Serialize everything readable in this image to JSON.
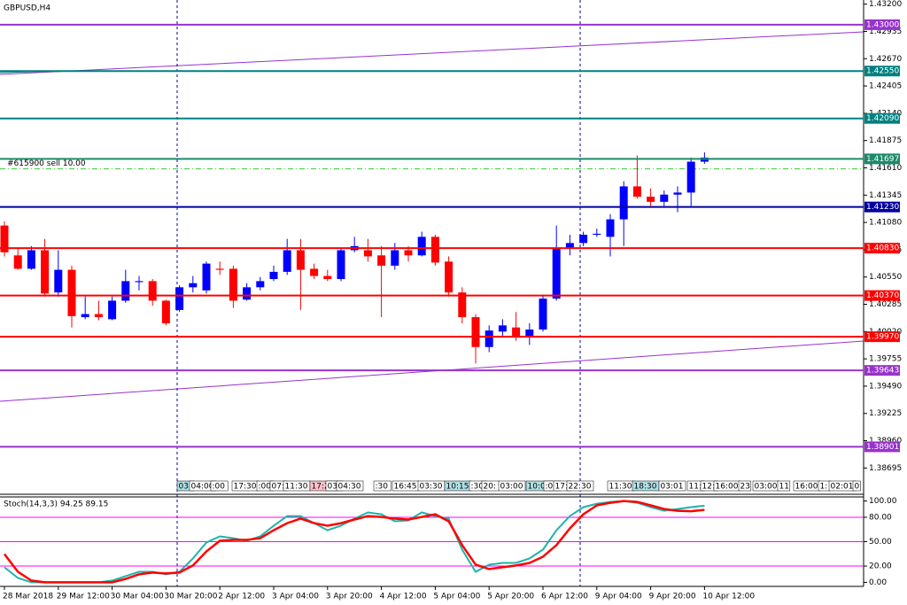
{
  "chart_data": [
    {
      "type": "candlestick",
      "title": "GBPUSD,H4",
      "annotation": {
        "text": "#615900 sell 10.00",
        "value": 1.416,
        "color": "#32cd32"
      },
      "up_color": "#0000ff",
      "down_color": "#ff0000",
      "categories": [
        "28 Mar 2018",
        null,
        null,
        null,
        "29 Mar 12:00",
        null,
        null,
        null,
        "30 Mar 04:00",
        null,
        null,
        null,
        "30 Mar 20:00",
        null,
        null,
        null,
        "2 Apr 12:00",
        null,
        null,
        null,
        "3 Apr 04:00",
        null,
        null,
        null,
        "3 Apr 20:00",
        null,
        null,
        null,
        "4 Apr 12:00",
        null,
        null,
        null,
        "5 Apr 04:00",
        null,
        null,
        null,
        "5 Apr 20:00",
        null,
        null,
        null,
        "6 Apr 12:00",
        null,
        null,
        null,
        "9 Apr 04:00",
        null,
        null,
        null,
        "9 Apr 20:00",
        null,
        null,
        null,
        "10 Apr 12:00"
      ],
      "open": [
        1.4105,
        1.4076,
        1.4063,
        1.4081,
        1.404,
        1.4062,
        1.4016,
        1.4019,
        1.4014,
        1.4032,
        1.405,
        1.4051,
        1.4032,
        1.4023,
        1.4045,
        1.4042,
        1.4063,
        1.4063,
        1.4033,
        1.4045,
        1.4053,
        1.406,
        1.4081,
        1.4063,
        1.4056,
        1.4053,
        1.4081,
        1.4081,
        1.4076,
        1.4066,
        1.4081,
        1.4076,
        1.4094,
        1.407,
        1.404,
        1.4016,
        1.3987,
        1.4002,
        1.4006,
        1.3997,
        1.4004,
        1.4034,
        1.4083,
        1.4088,
        1.4096,
        1.4094,
        1.4111,
        1.4143,
        1.4133,
        1.4128,
        1.4135,
        1.4137,
        1.4167
      ],
      "high": [
        1.4109,
        1.4083,
        1.4085,
        1.4092,
        1.4081,
        1.4066,
        1.4036,
        1.4032,
        1.4036,
        1.4062,
        1.4056,
        1.4053,
        1.4033,
        1.4047,
        1.4056,
        1.407,
        1.407,
        1.4066,
        1.4049,
        1.4055,
        1.4066,
        1.4092,
        1.4092,
        1.4068,
        1.4062,
        1.4083,
        1.4094,
        1.4092,
        1.4085,
        1.4088,
        1.4085,
        1.4099,
        1.4096,
        1.4075,
        1.4045,
        1.4019,
        1.4008,
        1.4014,
        1.4021,
        1.401,
        1.4038,
        1.4105,
        1.4096,
        1.4099,
        1.4102,
        1.4116,
        1.4148,
        1.4173,
        1.4141,
        1.4139,
        1.4143,
        1.4171,
        1.4176
      ],
      "low": [
        1.4075,
        1.4062,
        1.4062,
        1.4036,
        1.4036,
        1.4006,
        1.4014,
        1.4013,
        1.4013,
        1.403,
        1.4042,
        1.4027,
        1.4008,
        1.4021,
        1.404,
        1.4039,
        1.4057,
        1.4025,
        1.4032,
        1.4042,
        1.4051,
        1.4057,
        1.4023,
        1.4053,
        1.4051,
        1.4051,
        1.4079,
        1.407,
        1.4016,
        1.4062,
        1.407,
        1.4075,
        1.4066,
        1.4036,
        1.401,
        1.3971,
        1.3982,
        1.3997,
        1.3993,
        1.3989,
        1.4002,
        1.4032,
        1.4076,
        1.4085,
        1.4094,
        1.4075,
        1.4085,
        1.4131,
        1.4124,
        1.4124,
        1.4118,
        1.4124,
        1.4165
      ],
      "close": [
        1.4079,
        1.4063,
        1.4081,
        1.4039,
        1.4062,
        1.4017,
        1.4019,
        1.4016,
        1.4032,
        1.4051,
        1.4051,
        1.4032,
        1.401,
        1.4045,
        1.4049,
        1.4068,
        1.4062,
        1.4032,
        1.4045,
        1.4051,
        1.406,
        1.4081,
        1.4062,
        1.4056,
        1.4053,
        1.4081,
        1.4085,
        1.4075,
        1.4066,
        1.4081,
        1.4076,
        1.4094,
        1.4069,
        1.404,
        1.4016,
        1.3987,
        1.4003,
        1.4008,
        1.3997,
        1.4004,
        1.4034,
        1.4083,
        1.4088,
        1.4096,
        1.4097,
        1.4111,
        1.4143,
        1.4133,
        1.4128,
        1.4135,
        1.4137,
        1.4167,
        1.4171
      ],
      "ylim": [
        1.3844,
        1.4324
      ],
      "yticks": [
        {
          "value": 1.432,
          "label": "1.43200"
        },
        {
          "value": 1.42935,
          "label": "1.42935"
        },
        {
          "value": 1.4267,
          "label": "1.42670"
        },
        {
          "value": 1.42405,
          "label": "1.42405"
        },
        {
          "value": 1.4214,
          "label": "1.42140"
        },
        {
          "value": 1.41875,
          "label": "1.41875"
        },
        {
          "value": 1.4161,
          "label": "1.41610"
        },
        {
          "value": 1.41345,
          "label": "1.41345"
        },
        {
          "value": 1.4108,
          "label": "1.41080"
        },
        {
          "value": 1.40815,
          "label": "1.40815"
        },
        {
          "value": 1.4055,
          "label": "1.40550"
        },
        {
          "value": 1.40285,
          "label": "1.40285"
        },
        {
          "value": 1.4002,
          "label": "1.40020"
        },
        {
          "value": 1.39755,
          "label": "1.39755"
        },
        {
          "value": 1.3949,
          "label": "1.39490"
        },
        {
          "value": 1.39225,
          "label": "1.39225"
        },
        {
          "value": 1.3896,
          "label": "1.38960"
        },
        {
          "value": 1.38695,
          "label": "1.38695"
        }
      ],
      "levels": [
        {
          "value": 1.43,
          "label": "1.43000",
          "color": "#9932cc"
        },
        {
          "value": 1.4255,
          "label": "1.42550",
          "color": "#008080"
        },
        {
          "value": 1.4209,
          "label": "1.42090",
          "color": "#008080"
        },
        {
          "value": 1.41697,
          "label": "1.41697",
          "color": "#1b8a6b"
        },
        {
          "value": 1.4123,
          "label": "1.41230",
          "color": "#0000a0"
        },
        {
          "value": 1.4083,
          "label": "1.40830",
          "color": "#ff0000"
        },
        {
          "value": 1.4037,
          "label": "1.40370",
          "color": "#ff0000"
        },
        {
          "value": 1.3997,
          "label": "1.39970",
          "color": "#ff0000"
        },
        {
          "value": 1.39643,
          "label": "1.39643",
          "color": "#9932cc"
        },
        {
          "value": 1.38901,
          "label": "1.38901",
          "color": "#9932cc"
        }
      ],
      "time_labels": [
        "03:",
        "04:00",
        ":00",
        "17:30",
        ":00",
        "07:",
        "11:30",
        "17:20",
        "03:",
        "04:30",
        ":30",
        "16:45",
        "03:30",
        "10:15",
        ":30",
        "20:",
        "03:00",
        "10:00",
        ":00",
        "17:",
        "22:30",
        "11:30",
        "18:30",
        "03:01",
        "11:",
        "12:",
        "16:00",
        "23",
        "03:00",
        "11",
        "16:00",
        "1:",
        "02:01",
        "0"
      ]
    },
    {
      "type": "line",
      "title": "Stoch(14,3,3) 94.25 89.15",
      "ylim": [
        -5,
        105
      ],
      "yticks": [
        {
          "value": 100,
          "label": "100.00"
        },
        {
          "value": 80,
          "label": "80.00"
        },
        {
          "value": 50,
          "label": "50.00"
        },
        {
          "value": 20,
          "label": "20.00"
        },
        {
          "value": 0,
          "label": "0.00"
        }
      ],
      "levels": [
        80,
        50,
        20
      ],
      "level_color": "#ff00ff",
      "series": [
        {
          "color": "#20b2aa",
          "values": [
            18.5,
            5.4,
            0,
            0,
            0,
            0,
            0,
            0,
            2.2,
            7.6,
            13,
            13,
            9.8,
            13,
            29.3,
            48.9,
            56.5,
            54.3,
            51.1,
            56.5,
            69.6,
            81.5,
            81.5,
            72.8,
            64.1,
            69.6,
            78.3,
            85.9,
            83.7,
            75,
            76.1,
            85.9,
            81.5,
            78.3,
            40.2,
            13,
            21.7,
            23.9,
            23.9,
            29.3,
            40.2,
            64.1,
            81.5,
            92.4,
            96.7,
            98.9,
            100,
            97.8,
            92.4,
            88,
            90.2,
            92.5,
            94.25
          ]
        },
        {
          "color": "#ff0000",
          "values": [
            34.8,
            13,
            2.2,
            0,
            0,
            0,
            0,
            0,
            0,
            4.3,
            9.8,
            12,
            10.9,
            12,
            20.7,
            38,
            51.1,
            52.2,
            52.2,
            54.3,
            64.1,
            72.8,
            78.3,
            72.8,
            69.6,
            72.8,
            77.2,
            81.5,
            80.4,
            78.3,
            77.2,
            80.4,
            83.7,
            75,
            45.7,
            21.7,
            16.3,
            18.5,
            20.7,
            23.9,
            31.5,
            45.7,
            66.3,
            83.7,
            94.6,
            97.8,
            100,
            98.9,
            94.6,
            90.2,
            88,
            87.5,
            89.15
          ]
        }
      ]
    }
  ]
}
